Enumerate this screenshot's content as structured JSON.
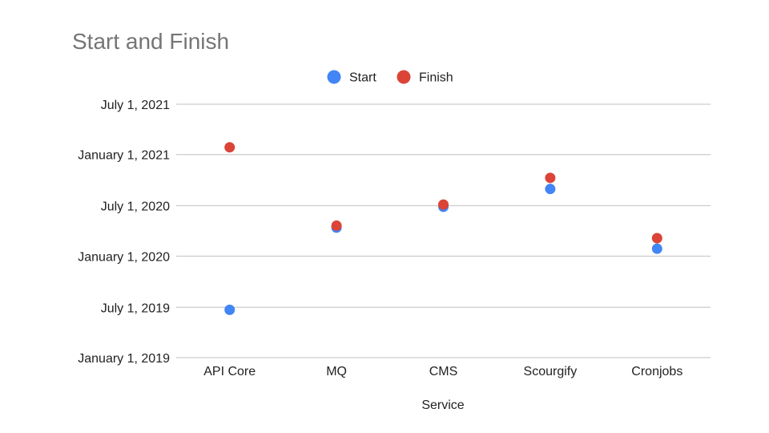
{
  "chart_data": {
    "type": "scatter",
    "title": "Start and Finish",
    "xlabel": "Service",
    "ylabel": "",
    "categories": [
      "API Core",
      "MQ",
      "CMS",
      "Scourgify",
      "Cronjobs"
    ],
    "y_axis": {
      "scale": "date",
      "range": [
        "2019-01-01",
        "2021-07-01"
      ],
      "ticks": [
        {
          "date": "2019-01-01",
          "label": "January 1, 2019"
        },
        {
          "date": "2019-07-01",
          "label": "July 1, 2019"
        },
        {
          "date": "2020-01-01",
          "label": "January 1, 2020"
        },
        {
          "date": "2020-07-01",
          "label": "July 1, 2020"
        },
        {
          "date": "2021-01-01",
          "label": "January 1, 2021"
        },
        {
          "date": "2021-07-01",
          "label": "July 1, 2021"
        }
      ]
    },
    "grid": true,
    "legend": "top-center",
    "series": [
      {
        "name": "Start",
        "color": "#4285f4",
        "values": [
          "2019-06-22",
          "2020-04-13",
          "2020-06-27",
          "2020-08-30",
          "2020-01-28"
        ]
      },
      {
        "name": "Finish",
        "color": "#db4437",
        "values": [
          "2021-01-27",
          "2020-04-20",
          "2020-07-05",
          "2020-10-09",
          "2020-03-06"
        ]
      }
    ]
  }
}
